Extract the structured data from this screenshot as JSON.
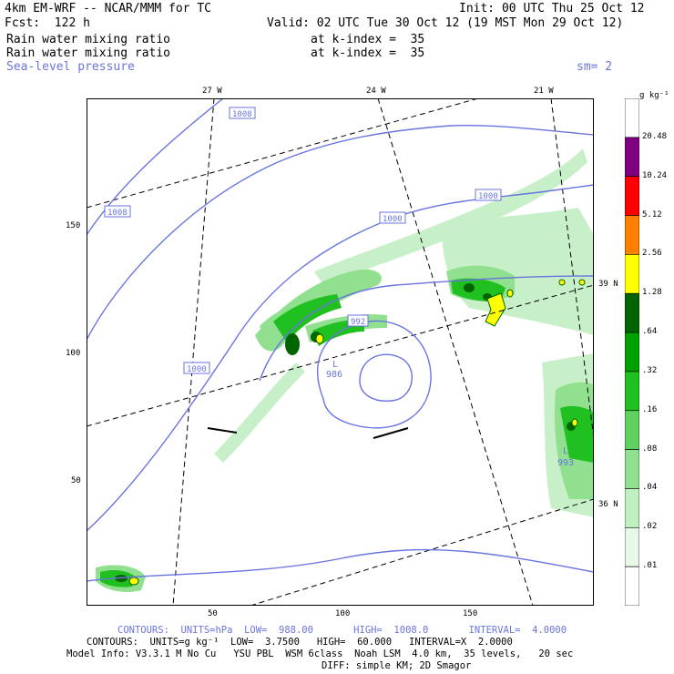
{
  "header": {
    "model": "4km EM-WRF -- NCAR/MMM for TC",
    "init": "Init: 00 UTC Thu 25 Oct 12",
    "fcst": "Fcst:  122 h",
    "valid": "Valid: 02 UTC Tue 30 Oct 12 (19 MST Mon 29 Oct 12)",
    "field1": "Rain water mixing ratio",
    "field1_level": "at k-index =  35",
    "field2": "Rain water mixing ratio",
    "field2_level": "at k-index =  35",
    "field3": "Sea-level pressure",
    "smooth": "sm= 2"
  },
  "map": {
    "lon_labels": [
      "27 W",
      "24 W",
      "21 W"
    ],
    "lat_labels": [
      "39 N",
      "36 N"
    ],
    "x_ticks": [
      "50",
      "100",
      "150"
    ],
    "y_ticks": [
      "150",
      "100",
      "50"
    ],
    "contour_labels": [
      "1008",
      "1008",
      "1000",
      "1000",
      "1000",
      "992"
    ],
    "lows": [
      {
        "symbol": "L",
        "value": "986"
      },
      {
        "symbol": "L",
        "value": "993"
      }
    ]
  },
  "colorbar": {
    "unit": "g kg⁻¹",
    "levels": [
      "20.48",
      "10.24",
      "5.12",
      "2.56",
      "1.28",
      ".64",
      ".32",
      ".16",
      ".08",
      ".04",
      ".02",
      ".01"
    ],
    "colors": [
      "#ffffff",
      "#800080",
      "#ff0000",
      "#ff8000",
      "#ffff00",
      "#006400",
      "#00a000",
      "#20c020",
      "#60d060",
      "#90e090",
      "#c0f0c0",
      "#e8f8e8",
      "#ffffff"
    ],
    "contour_color": "#6a74e0"
  },
  "footer": {
    "line1": "CONTOURS:  UNITS=hPa  LOW=  988.00       HIGH=  1008.0       INTERVAL=  4.0000",
    "line2": "CONTOURS:  UNITS=g kg⁻¹  LOW=  3.7500   HIGH=  60.000   INTERVAL=X  2.0000",
    "line3": "Model Info: V3.3.1 M No Cu   YSU PBL  WSM 6class  Noah LSM  4.0 km,  35 levels,   20 sec",
    "line4": "DIFF: simple KM; 2D Smagor"
  }
}
